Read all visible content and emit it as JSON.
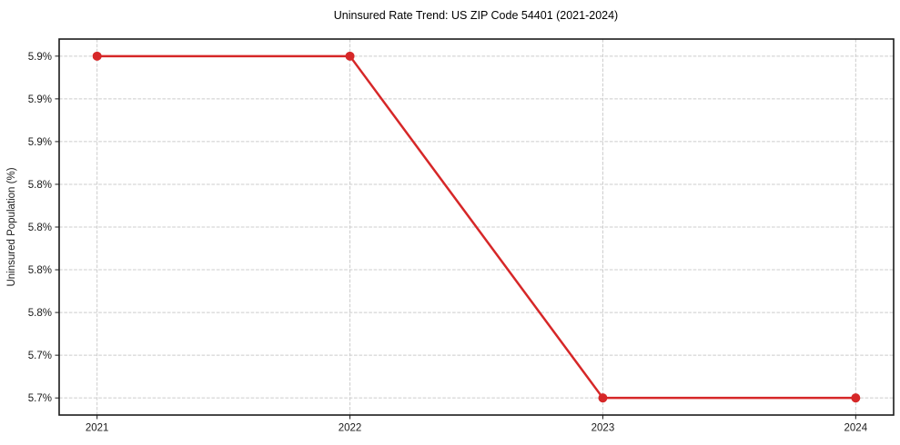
{
  "chart_data": {
    "type": "line",
    "title": "Uninsured Rate Trend: US ZIP Code 54401 (2021-2024)",
    "xlabel": "",
    "ylabel": "Uninsured Population (%)",
    "x": [
      2021,
      2022,
      2023,
      2024
    ],
    "values": [
      5.9,
      5.9,
      5.7,
      5.7
    ],
    "xlim": [
      2020.85,
      2024.15
    ],
    "ylim": [
      5.69,
      5.91
    ],
    "xticks": [
      {
        "value": 2021,
        "label": "2021"
      },
      {
        "value": 2022,
        "label": "2022"
      },
      {
        "value": 2023,
        "label": "2023"
      },
      {
        "value": 2024,
        "label": "2024"
      }
    ],
    "yticks": [
      {
        "value": 5.9,
        "label": "5.9%"
      },
      {
        "value": 5.875,
        "label": "5.9%"
      },
      {
        "value": 5.85,
        "label": "5.9%"
      },
      {
        "value": 5.825,
        "label": "5.8%"
      },
      {
        "value": 5.8,
        "label": "5.8%"
      },
      {
        "value": 5.775,
        "label": "5.8%"
      },
      {
        "value": 5.75,
        "label": "5.8%"
      },
      {
        "value": 5.725,
        "label": "5.7%"
      },
      {
        "value": 5.7,
        "label": "5.7%"
      }
    ],
    "grid": true,
    "grid_style": "dashed",
    "legend": false,
    "point_marker": "circle",
    "colors": {
      "line": "#d62728",
      "marker": "#d62728",
      "grid": "#cccccc",
      "spine": "#1a1a1a",
      "tick_label": "#1a1a1a",
      "title": "#000000",
      "background": "#ffffff"
    }
  }
}
